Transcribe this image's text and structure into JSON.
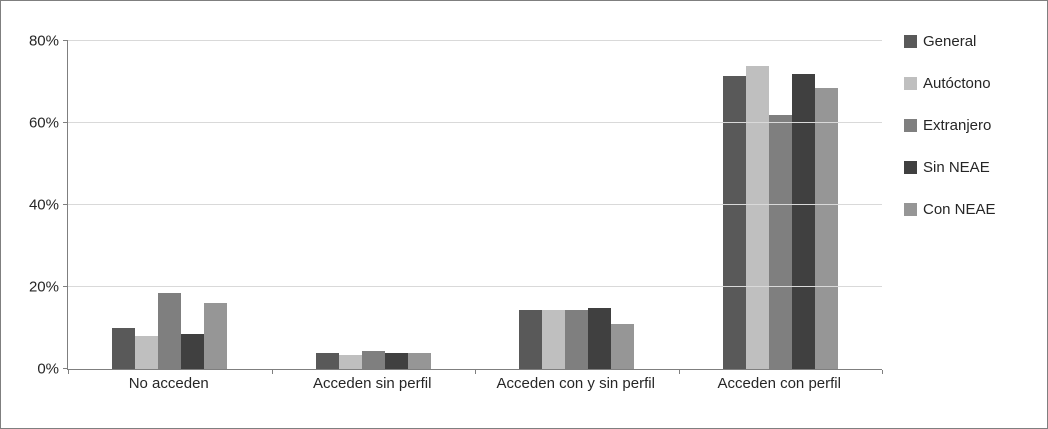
{
  "chart_data": {
    "type": "bar",
    "title": "",
    "xlabel": "",
    "ylabel": "",
    "categories": [
      "No acceden",
      "Acceden sin perfil",
      "Acceden con y sin perfil",
      "Acceden con perfil"
    ],
    "series": [
      {
        "name": "General",
        "color": "#595959",
        "values": [
          10,
          4,
          14.5,
          71.5
        ]
      },
      {
        "name": "Autóctono",
        "color": "#bfbfbf",
        "values": [
          8,
          3.5,
          14.5,
          74
        ]
      },
      {
        "name": "Extranjero",
        "color": "#7f7f7f",
        "values": [
          18.5,
          4.5,
          14.5,
          62
        ]
      },
      {
        "name": "Sin NEAE",
        "color": "#404040",
        "values": [
          8.5,
          4,
          15,
          72
        ]
      },
      {
        "name": "Con NEAE",
        "color": "#969696",
        "values": [
          16,
          4,
          11,
          68.5
        ]
      }
    ],
    "ylim": [
      0,
      80
    ],
    "ytick_values": [
      0,
      20,
      40,
      60,
      80
    ],
    "ytick_labels": [
      "0%",
      "20%",
      "40%",
      "60%",
      "80%"
    ],
    "grid": true,
    "legend_position": "right",
    "colors": {
      "gridline": "#d9d9d9",
      "axis": "#7f7f7f",
      "text": "#262626",
      "background": "#ffffff"
    }
  }
}
